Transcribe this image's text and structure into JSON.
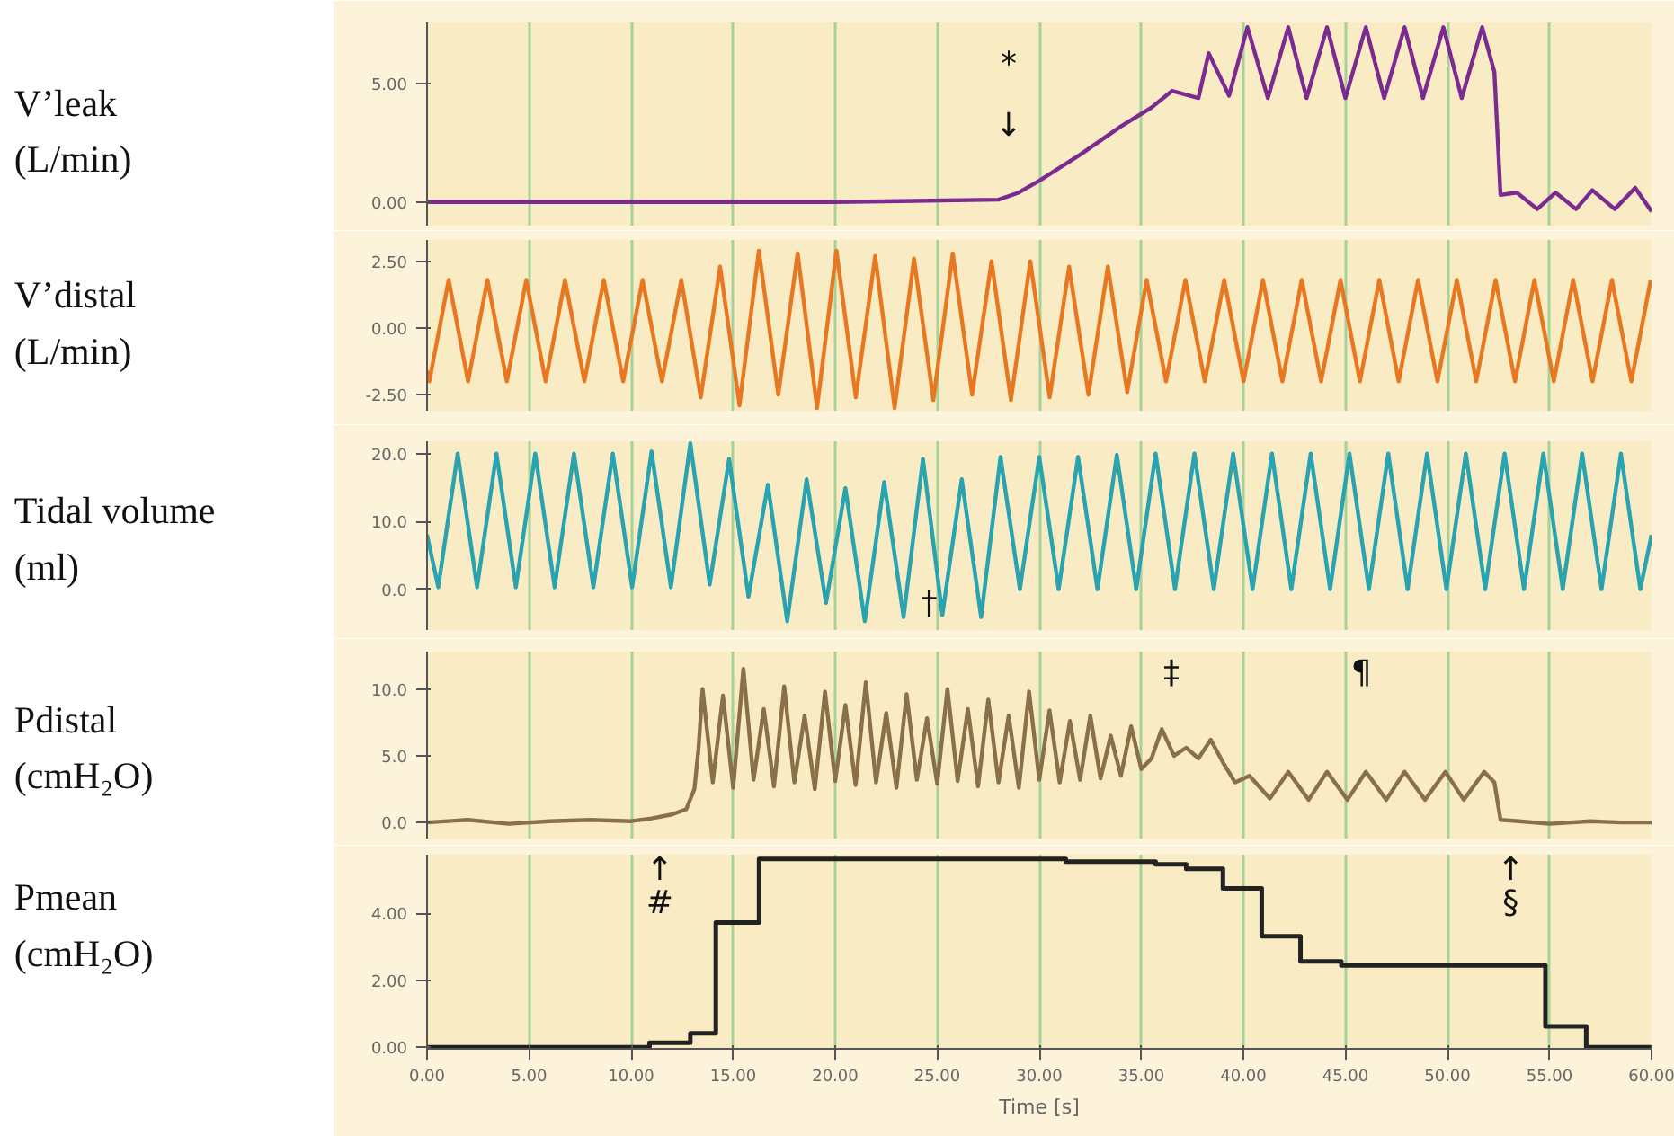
{
  "chart_data": [
    {
      "type": "line",
      "ylabel": "V’leak\n(L/min)",
      "color": "#7b2a90",
      "ylim": [
        -1,
        7.6
      ],
      "yticks": [
        {
          "value": 0,
          "label": "0.00"
        },
        {
          "value": 5,
          "label": "5.00"
        }
      ],
      "xlim": [
        0,
        60
      ],
      "xticks": [
        0,
        5,
        10,
        15,
        20,
        25,
        30,
        35,
        40,
        45,
        50,
        55,
        60
      ],
      "grid": "x",
      "tick_labels": "y",
      "x": [
        0,
        10,
        20,
        28,
        29,
        30,
        32,
        34,
        35.5,
        36.5,
        37.8,
        38.3,
        39.3,
        40.2,
        41.2,
        42.2,
        43.1,
        44.1,
        45.0,
        46.0,
        46.9,
        47.9,
        48.8,
        49.8,
        50.7,
        51.7,
        52.3,
        52.6,
        53.4,
        54.4,
        55.3,
        56.3,
        57.1,
        58.2,
        59.2,
        60
      ],
      "values": [
        0,
        0,
        0,
        0.1,
        0.4,
        0.9,
        2.0,
        3.2,
        4.0,
        4.7,
        4.4,
        6.3,
        4.5,
        7.4,
        4.4,
        7.4,
        4.4,
        7.4,
        4.4,
        7.4,
        4.4,
        7.4,
        4.4,
        7.4,
        4.4,
        7.4,
        5.5,
        0.3,
        0.4,
        -0.3,
        0.4,
        -0.3,
        0.5,
        -0.3,
        0.6,
        -0.4
      ],
      "annotations": [
        "*",
        "↓"
      ]
    },
    {
      "type": "line",
      "ylabel": "V’distal\n(L/min)",
      "color": "#e87722",
      "ylim": [
        -3.1,
        3.3
      ],
      "yticks": [
        {
          "value": -2.5,
          "label": "-2.50"
        },
        {
          "value": 0,
          "label": "0.00"
        },
        {
          "value": 2.5,
          "label": "2.50"
        }
      ],
      "xlim": [
        0,
        60
      ],
      "xticks": [
        0,
        5,
        10,
        15,
        20,
        25,
        30,
        35,
        40,
        45,
        50,
        55,
        60
      ],
      "grid": "x",
      "tick_labels": "y",
      "x": [
        0,
        0.11,
        1.06,
        2.01,
        2.96,
        3.91,
        4.86,
        5.81,
        6.76,
        7.71,
        8.66,
        9.61,
        10.56,
        11.51,
        12.46,
        13.41,
        14.36,
        15.31,
        16.26,
        17.21,
        18.16,
        19.11,
        20.06,
        21.01,
        21.96,
        22.91,
        23.86,
        24.81,
        25.76,
        26.71,
        27.66,
        28.61,
        29.56,
        30.51,
        31.46,
        32.41,
        33.36,
        34.31,
        35.26,
        36.21,
        37.16,
        38.11,
        39.06,
        40.01,
        40.96,
        41.91,
        42.86,
        43.81,
        44.76,
        45.71,
        46.66,
        47.61,
        48.56,
        49.51,
        50.46,
        51.41,
        52.36,
        53.31,
        54.26,
        55.21,
        56.16,
        57.11,
        58.06,
        59.01,
        59.96
      ],
      "values": [
        -1.6,
        -2,
        1.8,
        -2,
        1.8,
        -2,
        1.8,
        -2,
        1.8,
        -2,
        1.8,
        -2,
        1.8,
        -2,
        1.8,
        -2.6,
        2.3,
        -2.9,
        2.9,
        -2.5,
        2.8,
        -3.0,
        2.9,
        -2.6,
        2.7,
        -3.0,
        2.6,
        -2.7,
        2.8,
        -2.5,
        2.5,
        -2.7,
        2.5,
        -2.6,
        2.3,
        -2.5,
        2.3,
        -2.4,
        1.8,
        -2,
        1.8,
        -2,
        1.8,
        -2,
        1.8,
        -2,
        1.8,
        -2,
        1.8,
        -2,
        1.8,
        -2,
        1.8,
        -2,
        1.8,
        -2,
        1.8,
        -2,
        1.8,
        -2,
        1.8,
        -2,
        1.8,
        -2,
        1.8
      ]
    },
    {
      "type": "line",
      "ylabel": "Tidal volume\n(ml)",
      "color": "#2aa3b0",
      "ylim": [
        -6,
        21.8
      ],
      "yticks": [
        {
          "value": 0,
          "label": "0.0"
        },
        {
          "value": 10,
          "label": "10.0"
        },
        {
          "value": 20,
          "label": "20.0"
        }
      ],
      "xlim": [
        0,
        60
      ],
      "xticks": [
        0,
        5,
        10,
        15,
        20,
        25,
        30,
        35,
        40,
        45,
        50,
        55,
        60
      ],
      "grid": "x",
      "tick_labels": "y",
      "x": [
        0,
        0.55,
        1.5,
        2.45,
        3.4,
        4.35,
        5.3,
        6.25,
        7.2,
        8.15,
        9.1,
        10.05,
        11.0,
        11.95,
        12.9,
        13.85,
        14.8,
        15.75,
        16.7,
        17.65,
        18.6,
        19.55,
        20.5,
        21.45,
        22.4,
        23.35,
        24.3,
        25.25,
        26.2,
        27.15,
        28.1,
        29.05,
        30.0,
        30.95,
        31.9,
        32.85,
        33.8,
        34.75,
        35.7,
        36.65,
        37.6,
        38.55,
        39.5,
        40.45,
        41.4,
        42.35,
        43.3,
        44.25,
        45.2,
        46.15,
        47.1,
        48.05,
        49.0,
        49.95,
        50.9,
        51.85,
        52.8,
        53.75,
        54.7,
        55.65,
        56.6,
        57.55,
        58.5,
        59.45,
        60
      ],
      "values": [
        8,
        0.3,
        20,
        0.3,
        20,
        0.3,
        20,
        0.3,
        20,
        0.3,
        20,
        0.3,
        20.3,
        0.3,
        21.5,
        0.7,
        19.2,
        -1.1,
        15.4,
        -4.7,
        16.2,
        -2,
        14.9,
        -4.7,
        15.8,
        -4.1,
        19.2,
        -3.8,
        16.2,
        -4.1,
        19.5,
        0,
        19.5,
        0,
        19.5,
        0,
        19.8,
        0,
        20,
        0,
        20,
        0,
        20,
        0,
        20,
        0,
        20,
        0,
        20,
        0,
        20,
        0,
        20,
        0,
        20,
        0,
        20,
        0,
        20,
        0,
        20,
        0,
        20,
        0,
        8
      ],
      "annotations": [
        "†"
      ]
    },
    {
      "type": "line",
      "ylabel": "Pdistal\n(cmH₂O)",
      "color": "#8a7048",
      "ylim": [
        -1.2,
        12.8
      ],
      "yticks": [
        {
          "value": 0,
          "label": "0.0"
        },
        {
          "value": 5,
          "label": "5.0"
        },
        {
          "value": 10,
          "label": "10.0"
        }
      ],
      "xlim": [
        0,
        60
      ],
      "xticks": [
        0,
        5,
        10,
        15,
        20,
        25,
        30,
        35,
        40,
        45,
        50,
        55,
        60
      ],
      "grid": "x",
      "tick_labels": "y",
      "x": [
        0,
        2,
        4,
        6,
        8,
        10,
        11,
        12,
        12.7,
        13.1,
        13.3,
        13.5,
        14,
        14.5,
        15,
        15.5,
        16,
        16.5,
        17,
        17.5,
        18,
        18.5,
        19,
        19.5,
        20,
        20.5,
        21,
        21.5,
        22,
        22.5,
        23,
        23.5,
        24,
        24.5,
        25,
        25.5,
        26,
        26.5,
        27,
        27.5,
        28,
        28.5,
        29,
        29.5,
        30,
        30.5,
        31,
        31.5,
        32,
        32.5,
        33,
        33.5,
        34,
        34.5,
        35,
        35.5,
        36.0,
        36.6,
        37.2,
        37.8,
        38.4,
        39.0,
        39.6,
        40.3,
        41.3,
        42.2,
        43.2,
        44.1,
        45.1,
        46.0,
        47.0,
        47.9,
        48.9,
        49.9,
        50.8,
        51.8,
        52.3,
        52.6,
        53.5,
        55,
        57,
        58.5,
        60
      ],
      "values": [
        0,
        0.2,
        -0.1,
        0.1,
        0.2,
        0.1,
        0.3,
        0.6,
        1.0,
        2.5,
        5.5,
        10,
        3,
        9.5,
        2.6,
        11.5,
        3.2,
        8.5,
        2.7,
        10.2,
        3.0,
        8.0,
        2.5,
        9.8,
        3.1,
        8.8,
        2.8,
        10.5,
        3.0,
        8.2,
        2.6,
        9.6,
        3.2,
        7.8,
        2.9,
        10,
        3.1,
        8.5,
        2.7,
        9.2,
        3.0,
        8.0,
        2.6,
        9.8,
        3.2,
        8.4,
        3.0,
        7.6,
        3.2,
        8.0,
        3.3,
        6.5,
        3.5,
        7.2,
        4.0,
        4.8,
        7.0,
        5.0,
        5.6,
        4.8,
        6.2,
        4.5,
        3.0,
        3.5,
        1.8,
        3.8,
        1.7,
        3.8,
        1.7,
        3.8,
        1.7,
        3.8,
        1.7,
        3.8,
        1.7,
        3.8,
        3.0,
        0.2,
        0.1,
        -0.1,
        0.1,
        0.0,
        0.0
      ],
      "annotations": [
        "‡",
        "¶"
      ]
    },
    {
      "type": "step",
      "ylabel": "Pmean\n(cmH₂O)",
      "xlabel": "Time [s]",
      "color": "#222222",
      "ylim": [
        -0.05,
        5.75
      ],
      "yticks": [
        {
          "value": 0,
          "label": "0.00"
        },
        {
          "value": 2,
          "label": "2.00"
        },
        {
          "value": 4,
          "label": "4.00"
        }
      ],
      "xlim": [
        0,
        60
      ],
      "xticks": [
        {
          "value": 0,
          "label": "0.00"
        },
        {
          "value": 5,
          "label": "5.00"
        },
        {
          "value": 10,
          "label": "10.00"
        },
        {
          "value": 15,
          "label": "15.00"
        },
        {
          "value": 20,
          "label": "20.00"
        },
        {
          "value": 25,
          "label": "25.00"
        },
        {
          "value": 30,
          "label": "30.00"
        },
        {
          "value": 35,
          "label": "35.00"
        },
        {
          "value": 40,
          "label": "40.00"
        },
        {
          "value": 45,
          "label": "45.00"
        },
        {
          "value": 50,
          "label": "50.00"
        },
        {
          "value": 55,
          "label": "55.00"
        },
        {
          "value": 60,
          "label": "60.00"
        }
      ],
      "grid": "x",
      "x": [
        0,
        10.9,
        12.9,
        14.15,
        16.27,
        31.3,
        35.7,
        37.2,
        39.0,
        40.9,
        42.8,
        44.8,
        54.8,
        56.8,
        60
      ],
      "values": [
        0,
        0.13,
        0.41,
        3.72,
        5.62,
        5.54,
        5.46,
        5.33,
        4.74,
        3.31,
        2.56,
        2.44,
        0.62,
        0,
        0
      ],
      "annotations": [
        "↑",
        "#",
        "↑",
        "§"
      ]
    }
  ]
}
